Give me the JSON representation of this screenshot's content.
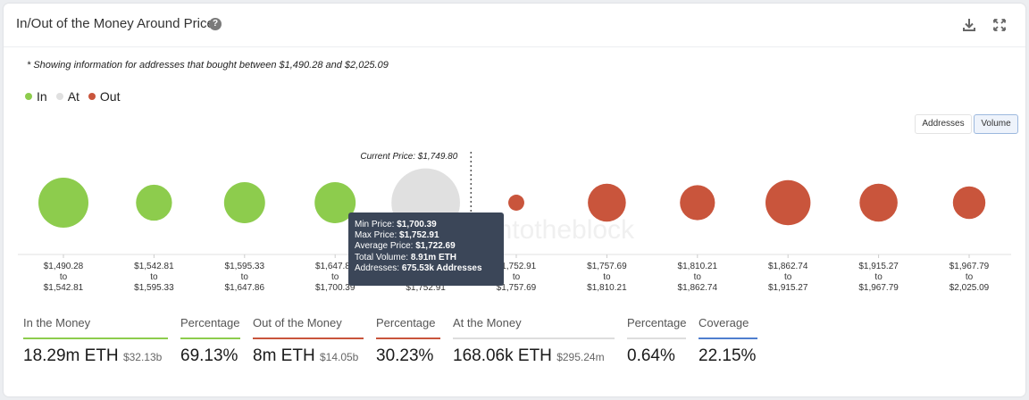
{
  "header": {
    "title": "In/Out of the Money Around Price",
    "help_icon": "?"
  },
  "note": "* Showing information for addresses that bought between $1,490.28 and $2,025.09",
  "legend": [
    {
      "label": "In",
      "color": "#8dcc4d"
    },
    {
      "label": "At",
      "color": "#e0e0e0"
    },
    {
      "label": "Out",
      "color": "#c9553c"
    }
  ],
  "toggles": {
    "addresses": "Addresses",
    "volume": "Volume",
    "selected": "volume"
  },
  "watermark": "intotheblock",
  "chart_data": {
    "type": "bubble",
    "current_price_label": "Current Price: $1,749.80",
    "current_price": 1749.8,
    "buckets": [
      {
        "from": "$1,490.28",
        "to": "$1,542.81",
        "status": "in",
        "size": 1.0
      },
      {
        "from": "$1,542.81",
        "to": "$1,595.33",
        "status": "in",
        "size": 0.72
      },
      {
        "from": "$1,595.33",
        "to": "$1,647.86",
        "status": "in",
        "size": 0.82
      },
      {
        "from": "$1,647.86",
        "to": "$1,700.39",
        "status": "in",
        "size": 0.82
      },
      {
        "from": "$1,700.39",
        "to": "$1,752.91",
        "status": "at",
        "size": 1.37
      },
      {
        "from": "$1,752.91",
        "to": "$1,757.69",
        "status": "out",
        "size": 0.32
      },
      {
        "from": "$1,757.69",
        "to": "$1,810.21",
        "status": "out",
        "size": 0.76
      },
      {
        "from": "$1,810.21",
        "to": "$1,862.74",
        "status": "out",
        "size": 0.7
      },
      {
        "from": "$1,862.74",
        "to": "$1,915.27",
        "status": "out",
        "size": 0.9
      },
      {
        "from": "$1,915.27",
        "to": "$1,967.79",
        "status": "out",
        "size": 0.76
      },
      {
        "from": "$1,967.79",
        "to": "$2,025.09",
        "status": "out",
        "size": 0.65
      }
    ],
    "to_word": "to",
    "colors": {
      "in": "#8dcc4d",
      "at": "#e0e0e0",
      "out": "#c9553c"
    }
  },
  "tooltip": {
    "rows": [
      {
        "label": "Min Price:",
        "value": "$1,700.39"
      },
      {
        "label": "Max Price:",
        "value": "$1,752.91"
      },
      {
        "label": "Average Price:",
        "value": "$1,722.69"
      },
      {
        "label": "Total Volume:",
        "value": "8.91m ETH"
      },
      {
        "label": "Addresses:",
        "value": "675.53k Addresses"
      }
    ]
  },
  "stats": [
    {
      "label": "In the Money",
      "value": "18.29m ETH",
      "sub": "$32.13b",
      "color": "#8dcc4d"
    },
    {
      "label": "Percentage",
      "value": "69.13%",
      "sub": "",
      "color": "#8dcc4d"
    },
    {
      "label": "Out of the Money",
      "value": "8m ETH",
      "sub": "$14.05b",
      "color": "#c9553c"
    },
    {
      "label": "Percentage",
      "value": "30.23%",
      "sub": "",
      "color": "#c9553c"
    },
    {
      "label": "At the Money",
      "value": "168.06k ETH",
      "sub": "$295.24m",
      "color": "#dddddd"
    },
    {
      "label": "Percentage",
      "value": "0.64%",
      "sub": "",
      "color": "#dddddd"
    },
    {
      "label": "Coverage",
      "value": "22.15%",
      "sub": "",
      "color": "#4f7fcf"
    }
  ]
}
